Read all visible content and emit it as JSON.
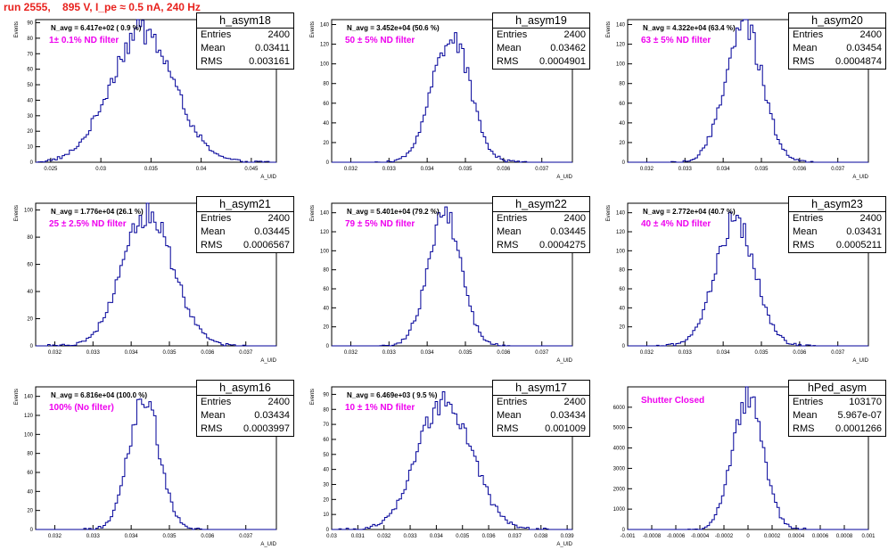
{
  "page": {
    "title": "run 2555,    895 V, I_pe ≈ 0.5 nA, 240 Hz"
  },
  "colors": {
    "histogram_line": "#000099",
    "annotation": "#ee00ee",
    "title": "#e8221e",
    "axis": "#000000"
  },
  "stat_labels": {
    "entries": "Entries",
    "mean": "Mean",
    "rms": "RMS"
  },
  "chart_data": [
    {
      "type": "histogram",
      "name": "h_asym18",
      "n_avg_label": "N_avg = 6.417e+02 ( 0.9 %)",
      "filter_label": "1± 0.1% ND filter",
      "entries": "2400",
      "mean": "0.03411",
      "rms": "0.003161",
      "xlabel": "A_UID",
      "ylabel": "Events",
      "xlim": [
        0.0235,
        0.0475
      ],
      "ylim": [
        0,
        92
      ],
      "xticks": [
        "0.025",
        "0.03",
        "0.035",
        "0.04",
        "0.045"
      ],
      "yticks": [
        "0",
        "10",
        "20",
        "30",
        "40",
        "50",
        "60",
        "70",
        "80",
        "90"
      ],
      "mean_value": 0.03411,
      "rms_value": 0.003161,
      "peak": 85
    },
    {
      "type": "histogram",
      "name": "h_asym19",
      "n_avg_label": "N_avg = 3.452e+04 (50.6 %)",
      "filter_label": "50 ± 5% ND filter",
      "entries": "2400",
      "mean": "0.03462",
      "rms": "0.0004901",
      "xlabel": "A_UID",
      "ylabel": "Events",
      "xlim": [
        0.0315,
        0.0378
      ],
      "ylim": [
        0,
        145
      ],
      "xticks": [
        "0.032",
        "0.033",
        "0.034",
        "0.035",
        "0.036",
        "0.037"
      ],
      "yticks": [
        "0",
        "20",
        "40",
        "60",
        "80",
        "100",
        "120",
        "140"
      ],
      "mean_value": 0.03462,
      "rms_value": 0.0004901,
      "peak": 130
    },
    {
      "type": "histogram",
      "name": "h_asym20",
      "n_avg_label": "N_avg = 4.322e+04 (63.4 %)",
      "filter_label": "63 ± 5% ND filter",
      "entries": "2400",
      "mean": "0.03454",
      "rms": "0.0004874",
      "xlabel": "A_UID",
      "ylabel": "Events",
      "xlim": [
        0.0315,
        0.0378
      ],
      "ylim": [
        0,
        145
      ],
      "xticks": [
        "0.032",
        "0.033",
        "0.034",
        "0.035",
        "0.036",
        "0.037"
      ],
      "yticks": [
        "0",
        "20",
        "40",
        "60",
        "80",
        "100",
        "120",
        "140"
      ],
      "mean_value": 0.03454,
      "rms_value": 0.0004874,
      "peak": 138
    },
    {
      "type": "histogram",
      "name": "h_asym21",
      "n_avg_label": "N_avg = 1.776e+04 (26.1 %)",
      "filter_label": "25 ± 2.5% ND filter",
      "entries": "2400",
      "mean": "0.03445",
      "rms": "0.0006567",
      "xlabel": "A_UID",
      "ylabel": "Events",
      "xlim": [
        0.0315,
        0.0378
      ],
      "ylim": [
        0,
        105
      ],
      "xticks": [
        "0.032",
        "0.033",
        "0.034",
        "0.035",
        "0.036",
        "0.037"
      ],
      "yticks": [
        "0",
        "20",
        "40",
        "60",
        "80",
        "100"
      ],
      "mean_value": 0.03445,
      "rms_value": 0.0006567,
      "peak": 98
    },
    {
      "type": "histogram",
      "name": "h_asym22",
      "n_avg_label": "N_avg = 5.401e+04 (79.2 %)",
      "filter_label": "79 ± 5% ND filter",
      "entries": "2400",
      "mean": "0.03445",
      "rms": "0.0004275",
      "xlabel": "A_UID",
      "ylabel": "Events",
      "xlim": [
        0.0315,
        0.0378
      ],
      "ylim": [
        0,
        150
      ],
      "xticks": [
        "0.032",
        "0.033",
        "0.034",
        "0.035",
        "0.036",
        "0.037"
      ],
      "yticks": [
        "0",
        "20",
        "40",
        "60",
        "80",
        "100",
        "120",
        "140"
      ],
      "mean_value": 0.03445,
      "rms_value": 0.0004275,
      "peak": 140
    },
    {
      "type": "histogram",
      "name": "h_asym23",
      "n_avg_label": "N_avg = 2.772e+04 (40.7 %)",
      "filter_label": "40 ± 4% ND filter",
      "entries": "2400",
      "mean": "0.03431",
      "rms": "0.0005211",
      "xlabel": "A_UID",
      "ylabel": "Events",
      "xlim": [
        0.0315,
        0.0378
      ],
      "ylim": [
        0,
        150
      ],
      "xticks": [
        "0.032",
        "0.033",
        "0.034",
        "0.035",
        "0.036",
        "0.037"
      ],
      "yticks": [
        "0",
        "20",
        "40",
        "60",
        "80",
        "100",
        "120",
        "140"
      ],
      "mean_value": 0.03431,
      "rms_value": 0.0005211,
      "peak": 130
    },
    {
      "type": "histogram",
      "name": "h_asym16",
      "n_avg_label": "N_avg = 6.816e+04 (100.0 %)",
      "filter_label": "100% (No filter)",
      "entries": "2400",
      "mean": "0.03434",
      "rms": "0.0003997",
      "xlabel": "A_UID",
      "ylabel": "Events",
      "xlim": [
        0.0315,
        0.0378
      ],
      "ylim": [
        0,
        150
      ],
      "xticks": [
        "0.032",
        "0.033",
        "0.034",
        "0.035",
        "0.036",
        "0.037"
      ],
      "yticks": [
        "0",
        "20",
        "40",
        "60",
        "80",
        "100",
        "120",
        "140"
      ],
      "mean_value": 0.03434,
      "rms_value": 0.0003997,
      "peak": 140
    },
    {
      "type": "histogram",
      "name": "h_asym17",
      "n_avg_label": "N_avg = 6.469e+03 ( 9.5 %)",
      "filter_label": "10 ± 1% ND filter",
      "entries": "2400",
      "mean": "0.03434",
      "rms": "0.001009",
      "xlabel": "A_UID",
      "ylabel": "Events",
      "xlim": [
        0.03,
        0.0392
      ],
      "ylim": [
        0,
        95
      ],
      "xticks": [
        "0.03",
        "0.031",
        "0.032",
        "0.033",
        "0.034",
        "0.035",
        "0.036",
        "0.037",
        "0.038",
        "0.039"
      ],
      "yticks": [
        "0",
        "10",
        "20",
        "30",
        "40",
        "50",
        "60",
        "70",
        "80",
        "90"
      ],
      "mean_value": 0.03434,
      "rms_value": 0.001009,
      "peak": 88
    },
    {
      "type": "histogram",
      "name": "hPed_asym",
      "n_avg_label": "",
      "filter_label": "Shutter Closed",
      "entries": "103170",
      "mean": "5.967e-07",
      "rms": "0.0001266",
      "xlabel": "",
      "ylabel": "",
      "xlim": [
        -0.001,
        0.001
      ],
      "ylim": [
        0,
        7000
      ],
      "xticks": [
        "-0.001",
        "-0.0008",
        "-0.0006",
        "-0.0004",
        "-0.0002",
        "0",
        "0.0002",
        "0.0004",
        "0.0006",
        "0.0008",
        "0.001"
      ],
      "yticks": [
        "0",
        "1000",
        "2000",
        "3000",
        "4000",
        "5000",
        "6000"
      ],
      "mean_value": 5.967e-07,
      "rms_value": 0.0001266,
      "peak": 6500
    }
  ]
}
